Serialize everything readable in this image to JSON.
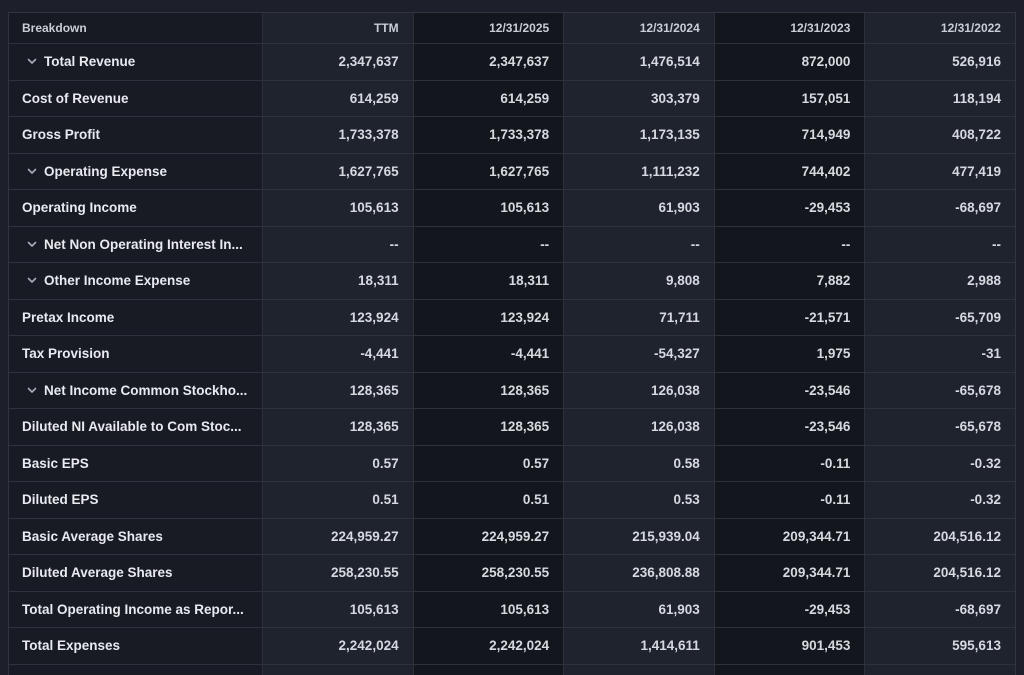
{
  "table": {
    "columns": [
      {
        "label": "Breakdown"
      },
      {
        "label": "TTM"
      },
      {
        "label": "12/31/2025"
      },
      {
        "label": "12/31/2024"
      },
      {
        "label": "12/31/2023"
      },
      {
        "label": "12/31/2022"
      }
    ],
    "rows": [
      {
        "label": "Total Revenue",
        "expandable": true,
        "values": [
          "2,347,637",
          "2,347,637",
          "1,476,514",
          "872,000",
          "526,916"
        ]
      },
      {
        "label": "Cost of Revenue",
        "expandable": false,
        "values": [
          "614,259",
          "614,259",
          "303,379",
          "157,051",
          "118,194"
        ]
      },
      {
        "label": "Gross Profit",
        "expandable": false,
        "values": [
          "1,733,378",
          "1,733,378",
          "1,173,135",
          "714,949",
          "408,722"
        ]
      },
      {
        "label": "Operating Expense",
        "expandable": true,
        "values": [
          "1,627,765",
          "1,627,765",
          "1,111,232",
          "744,402",
          "477,419"
        ]
      },
      {
        "label": "Operating Income",
        "expandable": false,
        "values": [
          "105,613",
          "105,613",
          "61,903",
          "-29,453",
          "-68,697"
        ]
      },
      {
        "label": "Net Non Operating Interest In...",
        "expandable": true,
        "values": [
          "--",
          "--",
          "--",
          "--",
          "--"
        ]
      },
      {
        "label": "Other Income Expense",
        "expandable": true,
        "values": [
          "18,311",
          "18,311",
          "9,808",
          "7,882",
          "2,988"
        ]
      },
      {
        "label": "Pretax Income",
        "expandable": false,
        "values": [
          "123,924",
          "123,924",
          "71,711",
          "-21,571",
          "-65,709"
        ]
      },
      {
        "label": "Tax Provision",
        "expandable": false,
        "values": [
          "-4,441",
          "-4,441",
          "-54,327",
          "1,975",
          "-31"
        ]
      },
      {
        "label": "Net Income Common Stockho...",
        "expandable": true,
        "values": [
          "128,365",
          "128,365",
          "126,038",
          "-23,546",
          "-65,678"
        ]
      },
      {
        "label": "Diluted NI Available to Com Stoc...",
        "expandable": false,
        "values": [
          "128,365",
          "128,365",
          "126,038",
          "-23,546",
          "-65,678"
        ]
      },
      {
        "label": "Basic EPS",
        "expandable": false,
        "values": [
          "0.57",
          "0.57",
          "0.58",
          "-0.11",
          "-0.32"
        ]
      },
      {
        "label": "Diluted EPS",
        "expandable": false,
        "values": [
          "0.51",
          "0.51",
          "0.53",
          "-0.11",
          "-0.32"
        ]
      },
      {
        "label": "Basic Average Shares",
        "expandable": false,
        "values": [
          "224,959.27",
          "224,959.27",
          "215,939.04",
          "209,344.71",
          "204,516.12"
        ]
      },
      {
        "label": "Diluted Average Shares",
        "expandable": false,
        "values": [
          "258,230.55",
          "258,230.55",
          "236,808.88",
          "209,344.71",
          "204,516.12"
        ]
      },
      {
        "label": "Total Operating Income as Repor...",
        "expandable": false,
        "values": [
          "105,613",
          "105,613",
          "61,903",
          "-29,453",
          "-68,697"
        ]
      },
      {
        "label": "Total Expenses",
        "expandable": false,
        "values": [
          "2,242,024",
          "2,242,024",
          "1,414,611",
          "901,453",
          "595,613"
        ]
      }
    ]
  },
  "icons": {
    "chevron_down": "chevron-down-icon"
  },
  "colors": {
    "page_background": "#1d202a",
    "label_column_background": "#181b24",
    "column_stripe_light": "#1f232d",
    "column_stripe_dark": "#14161d",
    "gridline": "#2d323d",
    "label_text": "#e8eaef",
    "value_text": "#d6d9df",
    "header_text": "#c9cdd5"
  }
}
